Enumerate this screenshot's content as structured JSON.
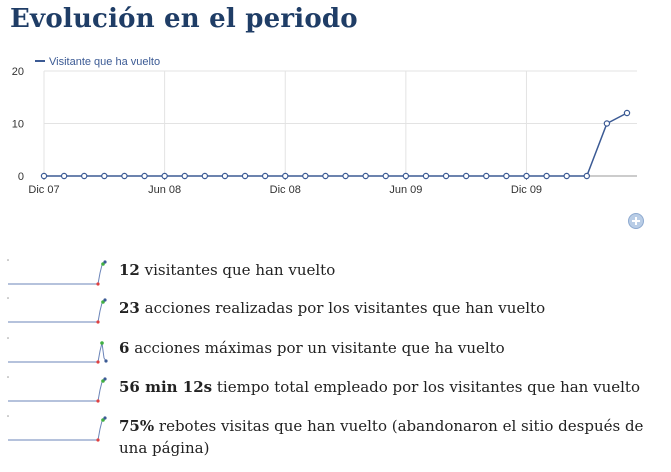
{
  "title": "Evolución en el periodo",
  "chart_data": {
    "type": "line",
    "series": [
      {
        "name": "Visitante que ha vuelto",
        "color": "#3b5a94",
        "values": [
          0,
          0,
          0,
          0,
          0,
          0,
          0,
          0,
          0,
          0,
          0,
          0,
          0,
          0,
          0,
          0,
          0,
          0,
          0,
          0,
          0,
          0,
          0,
          0,
          0,
          0,
          0,
          0,
          10,
          12
        ]
      }
    ],
    "x_tick_labels": [
      "Dic 07",
      "Jun 08",
      "Dic 08",
      "Jun 09",
      "Dic 09"
    ],
    "x_tick_positions": [
      0,
      6,
      12,
      18,
      24
    ],
    "y_ticks": [
      0,
      10,
      20
    ],
    "ylim": [
      0,
      20
    ],
    "grid": true,
    "legend_position": "top-left"
  },
  "zoom_icon": "plus-circle-icon",
  "metrics": [
    {
      "value": "12",
      "label": " visitantes que han vuelto",
      "spark_shape": "peak-end"
    },
    {
      "value": "23",
      "label": " acciones realizadas por los visitantes que han vuelto",
      "spark_shape": "peak-end"
    },
    {
      "value": "6",
      "label": " acciones máximas por un visitante que ha vuelto",
      "spark_shape": "peak-mid"
    },
    {
      "value": "56 min 12s",
      "label": " tiempo total empleado por los visitantes que han vuelto",
      "spark_shape": "peak-end"
    },
    {
      "value": "75%",
      "label": " rebotes visitas que han vuelto (abandonaron el sitio después de una página)",
      "spark_shape": "peak-end"
    }
  ]
}
